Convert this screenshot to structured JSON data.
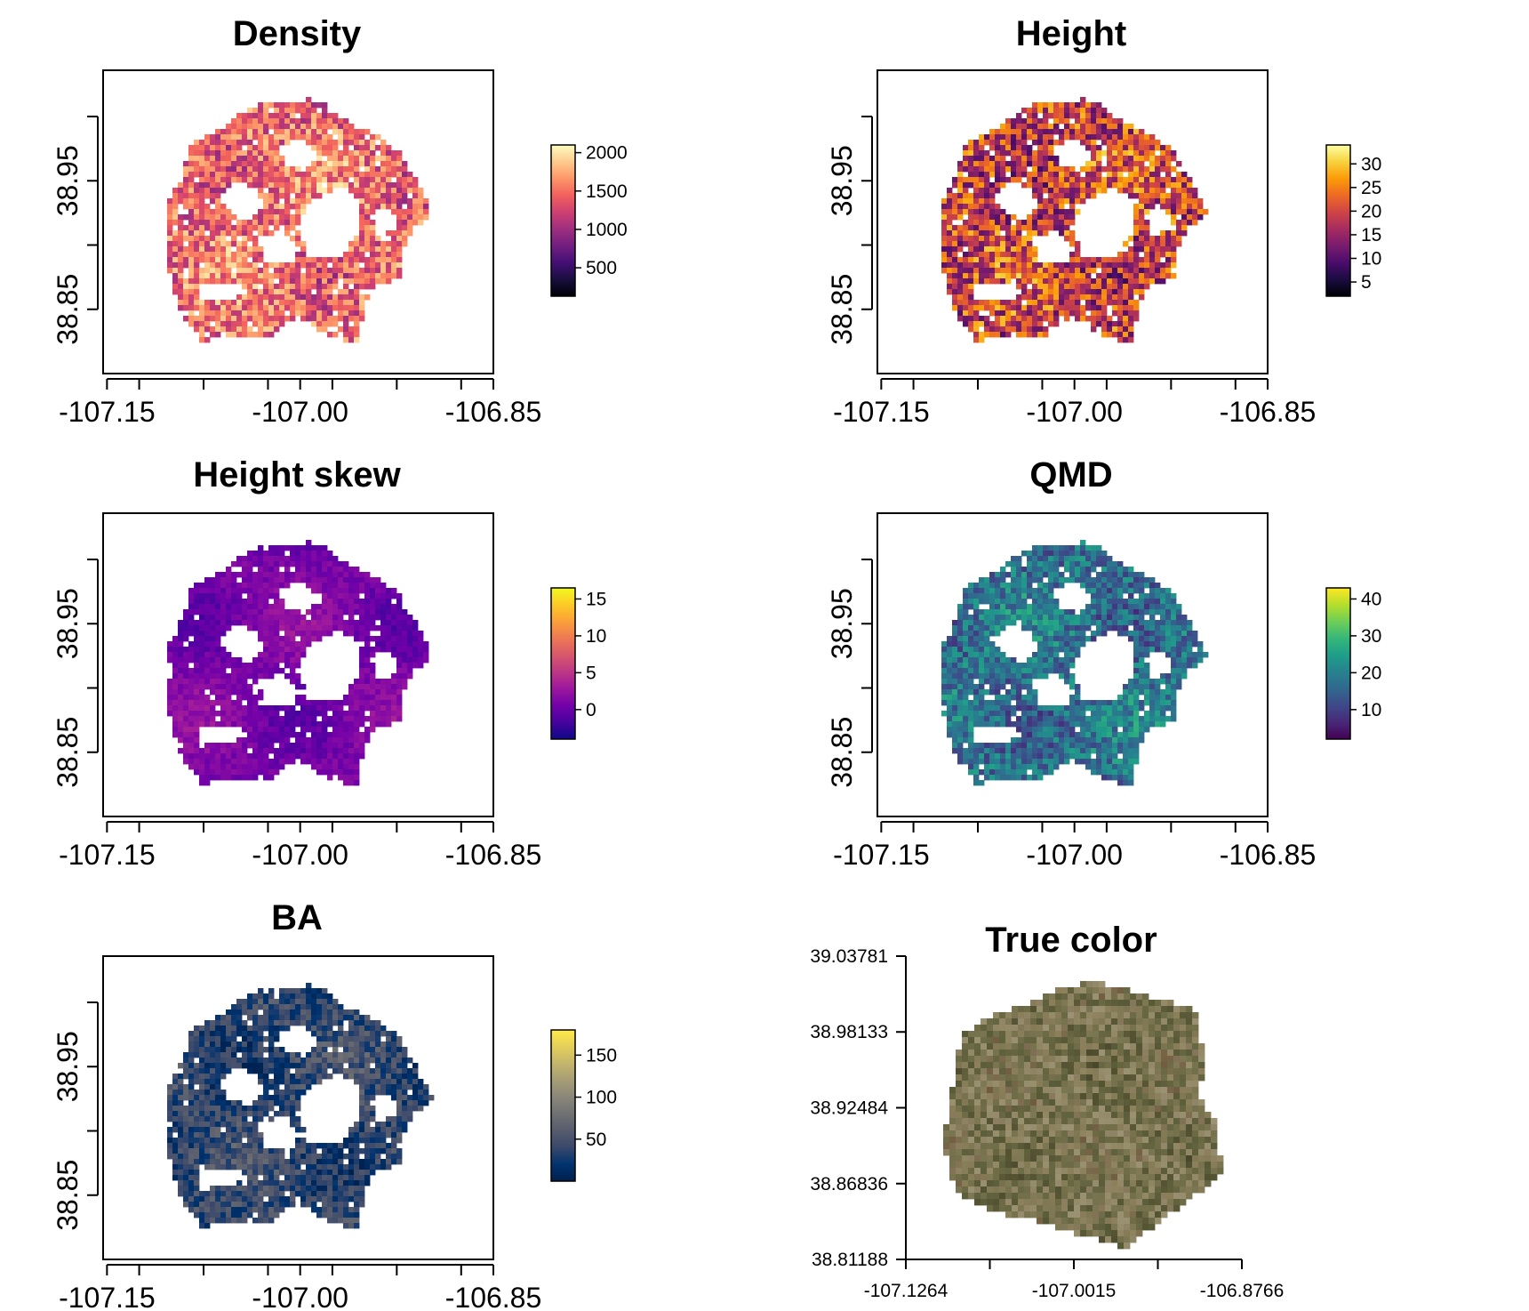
{
  "colormaps": {
    "inferno": [
      "#000004",
      "#1b0c41",
      "#4a0c6b",
      "#781c6d",
      "#a52c60",
      "#cf4446",
      "#ed6925",
      "#fb9b06",
      "#f7d13d",
      "#fcffa4"
    ],
    "magma": [
      "#000004",
      "#180f3d",
      "#440f76",
      "#721f81",
      "#9e2f7f",
      "#cd4071",
      "#f1605d",
      "#fd9668",
      "#feca8d",
      "#fcfdbf"
    ],
    "plasma": [
      "#0d0887",
      "#47039f",
      "#7301a8",
      "#9c179e",
      "#bd3786",
      "#d8576b",
      "#ed7953",
      "#fb9f3a",
      "#fdca26",
      "#f0f921"
    ],
    "viridis": [
      "#440154",
      "#482878",
      "#3e4989",
      "#31688e",
      "#26828e",
      "#1f9e89",
      "#35b779",
      "#6ece58",
      "#b5de2b",
      "#fde725"
    ],
    "cividis": [
      "#00204d",
      "#00336f",
      "#39486b",
      "#575c6d",
      "#707173",
      "#8a8779",
      "#a69d75",
      "#c4b56c",
      "#e4cf5b",
      "#ffea46"
    ],
    "truecolor": [
      "#3b3a24",
      "#4f4e2f",
      "#5c5d3a",
      "#6b6a45",
      "#7a7551",
      "#8b7f5a",
      "#9a9272",
      "#6f5a3e",
      "#b6b1a0",
      "#465a32"
    ]
  },
  "chart_data": [
    {
      "type": "heatmap",
      "title": "Density",
      "colormap": "magma",
      "x_ticks": [
        "-107.15",
        "-107.00",
        "-106.85"
      ],
      "x_tick_values": [
        -107.15,
        -107.0,
        -106.85
      ],
      "x_minor_tick_values": [
        -107.125,
        -107.075,
        -107.025,
        -106.975,
        -106.925,
        -106.875
      ],
      "y_ticks": [
        "38.85",
        "38.95"
      ],
      "y_tick_values": [
        38.85,
        38.95
      ],
      "y_minor_tick_values": [
        38.9,
        39.0
      ],
      "xlim": [
        -107.153,
        -106.85
      ],
      "ylim": [
        38.8,
        39.036
      ],
      "legend_ticks": [
        "500",
        "1000",
        "1500",
        "2000"
      ],
      "legend_tick_values": [
        500,
        1000,
        1500,
        2000
      ],
      "legend_range": [
        130,
        2100
      ],
      "value_bias": 0.68,
      "value_spread": 0.22,
      "seed": 11
    },
    {
      "type": "heatmap",
      "title": "Height",
      "colormap": "inferno",
      "x_ticks": [
        "-107.15",
        "-107.00",
        "-106.85"
      ],
      "x_tick_values": [
        -107.15,
        -107.0,
        -106.85
      ],
      "x_minor_tick_values": [
        -107.125,
        -107.075,
        -107.025,
        -106.975,
        -106.925,
        -106.875
      ],
      "y_ticks": [
        "38.85",
        "38.95"
      ],
      "y_tick_values": [
        38.85,
        38.95
      ],
      "y_minor_tick_values": [
        38.9,
        39.0
      ],
      "xlim": [
        -107.153,
        -106.85
      ],
      "ylim": [
        38.8,
        39.036
      ],
      "legend_ticks": [
        "5",
        "10",
        "15",
        "20",
        "25",
        "30"
      ],
      "legend_tick_values": [
        5,
        10,
        15,
        20,
        25,
        30
      ],
      "legend_range": [
        2,
        34
      ],
      "value_bias": 0.55,
      "value_spread": 0.3,
      "seed": 23
    },
    {
      "type": "heatmap",
      "title": "Height skew",
      "colormap": "plasma",
      "x_ticks": [
        "-107.15",
        "-107.00",
        "-106.85"
      ],
      "x_tick_values": [
        -107.15,
        -107.0,
        -106.85
      ],
      "x_minor_tick_values": [
        -107.125,
        -107.075,
        -107.025,
        -106.975,
        -106.925,
        -106.875
      ],
      "y_ticks": [
        "38.85",
        "38.95"
      ],
      "y_tick_values": [
        38.85,
        38.95
      ],
      "y_minor_tick_values": [
        38.9,
        39.0
      ],
      "xlim": [
        -107.153,
        -106.85
      ],
      "ylim": [
        38.8,
        39.036
      ],
      "legend_ticks": [
        "0",
        "5",
        "10",
        "15"
      ],
      "legend_tick_values": [
        0,
        5,
        10,
        15
      ],
      "legend_range": [
        -4,
        16.5
      ],
      "value_bias": 0.24,
      "value_spread": 0.06,
      "seed": 37
    },
    {
      "type": "heatmap",
      "title": "QMD",
      "colormap": "viridis",
      "x_ticks": [
        "-107.15",
        "-107.00",
        "-106.85"
      ],
      "x_tick_values": [
        -107.15,
        -107.0,
        -106.85
      ],
      "x_minor_tick_values": [
        -107.125,
        -107.075,
        -107.025,
        -106.975,
        -106.925,
        -106.875
      ],
      "y_ticks": [
        "38.85",
        "38.95"
      ],
      "y_tick_values": [
        38.85,
        38.95
      ],
      "y_minor_tick_values": [
        38.9,
        39.0
      ],
      "xlim": [
        -107.153,
        -106.85
      ],
      "ylim": [
        38.8,
        39.036
      ],
      "legend_ticks": [
        "10",
        "20",
        "30",
        "40"
      ],
      "legend_tick_values": [
        10,
        20,
        30,
        40
      ],
      "legend_range": [
        2,
        43
      ],
      "value_bias": 0.38,
      "value_spread": 0.2,
      "seed": 51
    },
    {
      "type": "heatmap",
      "title": "BA",
      "colormap": "cividis",
      "x_ticks": [
        "-107.15",
        "-107.00",
        "-106.85"
      ],
      "x_tick_values": [
        -107.15,
        -107.0,
        -106.85
      ],
      "x_minor_tick_values": [
        -107.125,
        -107.075,
        -107.025,
        -106.975,
        -106.925,
        -106.875
      ],
      "y_ticks": [
        "38.85",
        "38.95"
      ],
      "y_tick_values": [
        38.85,
        38.95
      ],
      "y_minor_tick_values": [
        38.9,
        39.0
      ],
      "xlim": [
        -107.153,
        -106.85
      ],
      "ylim": [
        38.8,
        39.036
      ],
      "legend_ticks": [
        "50",
        "100",
        "150"
      ],
      "legend_tick_values": [
        50,
        100,
        150
      ],
      "legend_range": [
        0,
        180
      ],
      "value_bias": 0.22,
      "value_spread": 0.15,
      "seed": 67
    },
    {
      "type": "heatmap",
      "title": "True color",
      "colormap": "truecolor",
      "x_ticks": [
        "-107.1264",
        "-107.0015",
        "-106.8766"
      ],
      "x_tick_values": [
        -107.1264,
        -107.0015,
        -106.8766
      ],
      "x_minor_tick_values": [
        -107.06395,
        -106.93905
      ],
      "y_ticks": [
        "38.81188",
        "38.86836",
        "38.92484",
        "38.98133",
        "39.03781"
      ],
      "y_tick_values": [
        38.81188,
        38.86836,
        38.92484,
        38.98133,
        39.03781
      ],
      "y_minor_tick_values": [],
      "xlim": [
        -107.1264,
        -106.8766
      ],
      "ylim": [
        38.81188,
        39.03781
      ],
      "value_bias": 0.45,
      "value_spread": 0.3,
      "seed": 83
    }
  ]
}
